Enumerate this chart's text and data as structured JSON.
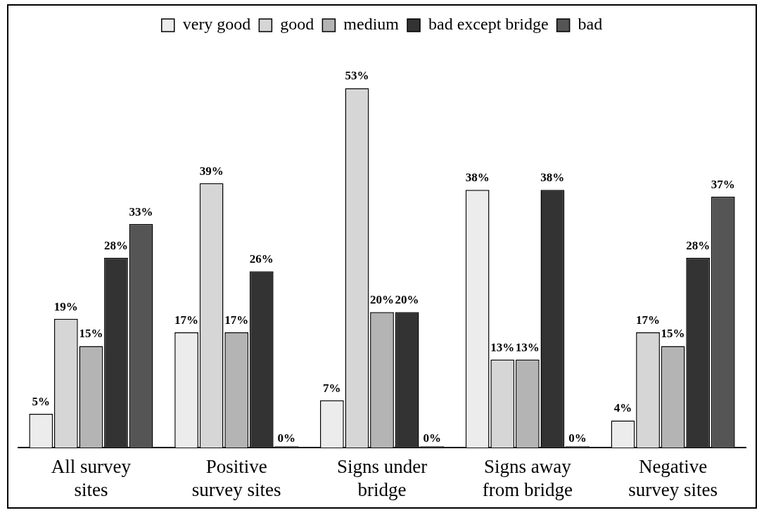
{
  "chart_data": {
    "type": "bar",
    "categories": [
      "All survey sites",
      "Positive survey sites",
      "Signs under bridge",
      "Signs away from bridge",
      "Negative survey sites"
    ],
    "series": [
      {
        "name": "very good",
        "color": "#ececec",
        "values": [
          5,
          17,
          7,
          38,
          4
        ],
        "value_labels": [
          "5%",
          "17%",
          "7%",
          "38%",
          "4%"
        ]
      },
      {
        "name": "good",
        "color": "#d6d6d6",
        "values": [
          19,
          39,
          53,
          13,
          17
        ],
        "value_labels": [
          "19%",
          "39%",
          "53%",
          "13%",
          "17%"
        ]
      },
      {
        "name": "medium",
        "color": "#b4b4b4",
        "values": [
          15,
          17,
          20,
          13,
          15
        ],
        "value_labels": [
          "15%",
          "17%",
          "20%",
          "13%",
          "15%"
        ]
      },
      {
        "name": "bad except bridge",
        "color": "#333333",
        "values": [
          28,
          26,
          20,
          38,
          28
        ],
        "value_labels": [
          "28%",
          "26%",
          "20%",
          "38%",
          "28%"
        ]
      },
      {
        "name": "bad",
        "color": "#555555",
        "values": [
          33,
          0,
          0,
          0,
          37
        ],
        "value_labels": [
          "33%",
          "0%",
          "0%",
          "0%",
          "37%"
        ]
      }
    ],
    "legend": "top",
    "grid": false
  }
}
